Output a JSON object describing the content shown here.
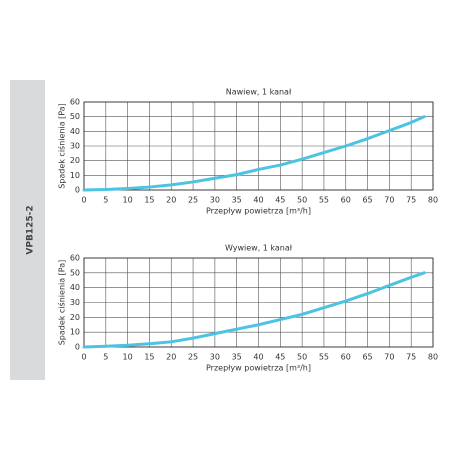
{
  "side_label": "VPB125-2",
  "chart_data": [
    {
      "type": "line",
      "title": "Nawiew, 1 kanał",
      "x_label": "Przepływ powietrza [m³/h]",
      "y_label": "Spadek ciśnienia [Pa]",
      "x": [
        0,
        5,
        10,
        15,
        20,
        25,
        30,
        35,
        40,
        45,
        50,
        55,
        60,
        65,
        70,
        75,
        78
      ],
      "series": [
        {
          "color": "#4cc3e2",
          "values": [
            0,
            0.3,
            1,
            2,
            3.5,
            5.5,
            8,
            10.5,
            14,
            17,
            21,
            25.5,
            30,
            35,
            40.5,
            46,
            50
          ]
        }
      ],
      "xlim": [
        0,
        80
      ],
      "xticks": [
        0,
        5,
        10,
        15,
        20,
        25,
        30,
        35,
        40,
        45,
        50,
        55,
        60,
        65,
        70,
        75,
        80
      ],
      "ylim": [
        0,
        60
      ],
      "yticks": [
        0,
        10,
        20,
        30,
        40,
        50,
        60
      ],
      "grid": true
    },
    {
      "type": "line",
      "title": "Wywiew, 1 kanał",
      "x_label": "Przepływ powietrza [m³/h]",
      "y_label": "Spadek ciśnienia [Pa]",
      "x": [
        0,
        5,
        10,
        15,
        20,
        25,
        30,
        35,
        40,
        45,
        50,
        55,
        60,
        65,
        70,
        75,
        78
      ],
      "series": [
        {
          "color": "#4cc3e2",
          "values": [
            0,
            0.5,
            1.2,
            2.2,
            3.5,
            6,
            9,
            12,
            15,
            18.5,
            22,
            26.5,
            31,
            36,
            41.5,
            47,
            50
          ]
        }
      ],
      "xlim": [
        0,
        80
      ],
      "xticks": [
        0,
        5,
        10,
        15,
        20,
        25,
        30,
        35,
        40,
        45,
        50,
        55,
        60,
        65,
        70,
        75,
        80
      ],
      "ylim": [
        0,
        60
      ],
      "yticks": [
        0,
        10,
        20,
        30,
        40,
        50,
        60
      ],
      "grid": true
    }
  ]
}
